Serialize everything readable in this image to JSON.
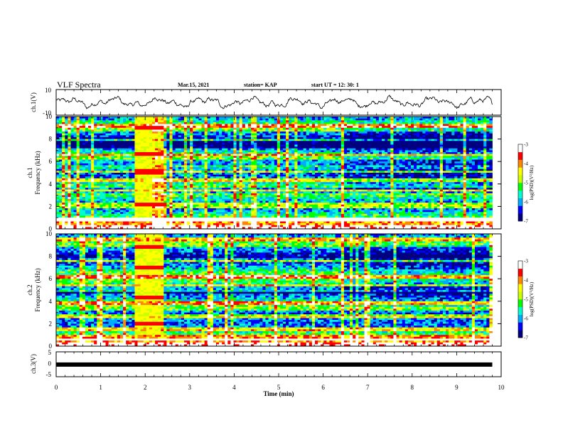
{
  "header": {
    "title": "VLF Spectra",
    "date": "Mar.15, 2021",
    "station": "station= KAP",
    "start_time": "start  UT  =   12: 30: 1"
  },
  "chart_data": [
    {
      "type": "line",
      "ylabel": "ch.1(V)",
      "ylim": [
        -10,
        10
      ],
      "yticks": [
        "10",
        "-10"
      ],
      "x_unit": "min",
      "xlim": [
        0,
        10
      ],
      "data_end_min": 9.8,
      "waveform": {
        "mean": 0,
        "amplitude": 3.5
      }
    },
    {
      "type": "heatmap",
      "ylabel_line1": "ch.1",
      "ylabel_line2": "Frequency  (kHz)",
      "xlim": [
        0,
        10
      ],
      "ylim": [
        0,
        10
      ],
      "yticks": [
        "0",
        "2",
        "4",
        "6",
        "8",
        "10"
      ],
      "data_end_min": 9.8,
      "bright_interval_min": [
        1.78,
        2.42
      ],
      "bright_bands_khz": [
        [
          2.0,
          2.4
        ],
        [
          4.9,
          5.3
        ],
        [
          6.5,
          6.75
        ],
        [
          8.9,
          9.1
        ]
      ],
      "narrow_lines_khz": [
        0.8,
        1.9,
        2.2,
        3.4,
        4.3,
        5.1,
        6.6,
        7.9,
        9.2
      ],
      "quiet_bands_khz": [
        [
          3.2,
          3.6
        ],
        [
          5.6,
          6.2
        ],
        [
          7.2,
          8.6
        ]
      ],
      "colorbar": {
        "label": "log(PSD)(V²/Hz)",
        "min": -7,
        "max": -3,
        "ticks": [
          "-3",
          "-4",
          "-5",
          "-6",
          "-7"
        ],
        "colors": [
          "#000080",
          "#0000ff",
          "#00aaff",
          "#00ffcc",
          "#00ff00",
          "#ccff00",
          "#ffff00",
          "#ff8800",
          "#ff0000",
          "#ffffff"
        ]
      }
    },
    {
      "type": "heatmap",
      "ylabel_line1": "ch.2",
      "ylabel_line2": "Frequency  (kHz)",
      "xlim": [
        0,
        10
      ],
      "ylim": [
        0,
        10
      ],
      "yticks": [
        "0",
        "2",
        "4",
        "6",
        "8",
        "10"
      ],
      "data_end_min": 9.8,
      "bright_interval_min": [
        1.78,
        2.42
      ],
      "bright_bands_khz": [
        [
          1.8,
          2.2
        ],
        [
          4.1,
          4.5
        ],
        [
          6.9,
          7.2
        ],
        [
          8.6,
          9.0
        ]
      ],
      "narrow_lines_khz": [
        0.6,
        1.5,
        2.7,
        3.8,
        4.9,
        5.4,
        6.2,
        7.6,
        9.5
      ],
      "quiet_bands_khz": [
        [
          2.6,
          3.2
        ],
        [
          4.6,
          5.0
        ],
        [
          7.8,
          8.8
        ]
      ],
      "colorbar": {
        "label": "log(PSD)(V²/Hz)",
        "min": -7,
        "max": -3,
        "ticks": [
          "-3",
          "-4",
          "-5",
          "-6",
          "-7"
        ],
        "colors": [
          "#000080",
          "#0000ff",
          "#00aaff",
          "#00ffcc",
          "#00ff00",
          "#ccff00",
          "#ffff00",
          "#ff8800",
          "#ff0000",
          "#ffffff"
        ]
      }
    },
    {
      "type": "line",
      "ylabel": "ch.3(V)",
      "ylim": [
        -5,
        5
      ],
      "yticks": [
        "5",
        "0",
        "-5"
      ],
      "data_end_min": 9.8,
      "constant_value": -0.1
    }
  ],
  "xaxis": {
    "label": "Time  (min)",
    "ticks": [
      "0",
      "1",
      "2",
      "3",
      "4",
      "5",
      "6",
      "7",
      "8",
      "9",
      "10"
    ]
  }
}
